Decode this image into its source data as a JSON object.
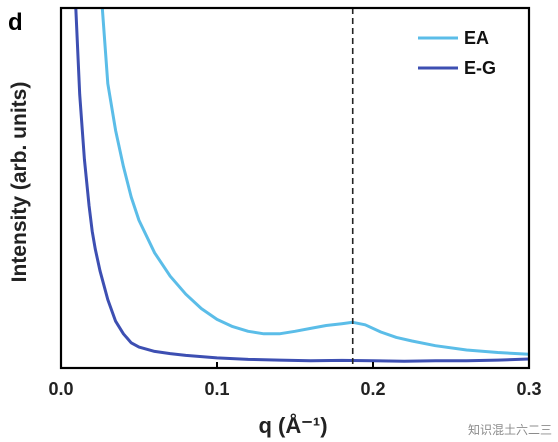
{
  "panel_label": "d",
  "watermark": "知识混土六二三",
  "chart_data": {
    "type": "line",
    "title": "",
    "xlabel": "q (Å⁻¹)",
    "ylabel": "Intensity (arb. units)",
    "xlim": [
      0.0,
      0.3
    ],
    "ylim": [
      0,
      100
    ],
    "y_ticks_labeled": false,
    "x_ticks": [
      "0.0",
      "0.1",
      "0.2",
      "0.3"
    ],
    "x_tick_values": [
      0.0,
      0.1,
      0.2,
      0.3
    ],
    "reference_line": {
      "x": 0.187,
      "style": "dashed"
    },
    "legend_position": "top-right",
    "series": [
      {
        "name": "EA",
        "color": "#5bbde8",
        "points": [
          [
            0.0265,
            100
          ],
          [
            0.03,
            79
          ],
          [
            0.035,
            66
          ],
          [
            0.04,
            56
          ],
          [
            0.045,
            47.5
          ],
          [
            0.05,
            41
          ],
          [
            0.06,
            32
          ],
          [
            0.07,
            25.5
          ],
          [
            0.08,
            20.5
          ],
          [
            0.09,
            16.5
          ],
          [
            0.1,
            13.5
          ],
          [
            0.11,
            11.5
          ],
          [
            0.12,
            10.2
          ],
          [
            0.13,
            9.5
          ],
          [
            0.14,
            9.5
          ],
          [
            0.15,
            10.2
          ],
          [
            0.16,
            11.0
          ],
          [
            0.17,
            11.8
          ],
          [
            0.18,
            12.3
          ],
          [
            0.187,
            12.7
          ],
          [
            0.195,
            12.0
          ],
          [
            0.205,
            10.0
          ],
          [
            0.215,
            8.5
          ],
          [
            0.225,
            7.5
          ],
          [
            0.24,
            6.2
          ],
          [
            0.26,
            5.0
          ],
          [
            0.28,
            4.3
          ],
          [
            0.3,
            3.8
          ]
        ]
      },
      {
        "name": "E-G",
        "color": "#3d4fb2",
        "points": [
          [
            0.0095,
            100
          ],
          [
            0.012,
            76
          ],
          [
            0.015,
            58
          ],
          [
            0.018,
            45
          ],
          [
            0.02,
            38
          ],
          [
            0.022,
            33
          ],
          [
            0.025,
            27
          ],
          [
            0.03,
            19
          ],
          [
            0.035,
            13
          ],
          [
            0.04,
            9.5
          ],
          [
            0.045,
            7.0
          ],
          [
            0.05,
            5.8
          ],
          [
            0.06,
            4.6
          ],
          [
            0.07,
            4.0
          ],
          [
            0.08,
            3.5
          ],
          [
            0.1,
            2.8
          ],
          [
            0.12,
            2.4
          ],
          [
            0.14,
            2.2
          ],
          [
            0.16,
            2.0
          ],
          [
            0.18,
            2.1
          ],
          [
            0.2,
            2.0
          ],
          [
            0.22,
            1.9
          ],
          [
            0.24,
            2.0
          ],
          [
            0.26,
            2.0
          ],
          [
            0.28,
            2.2
          ],
          [
            0.3,
            2.5
          ]
        ]
      }
    ]
  }
}
